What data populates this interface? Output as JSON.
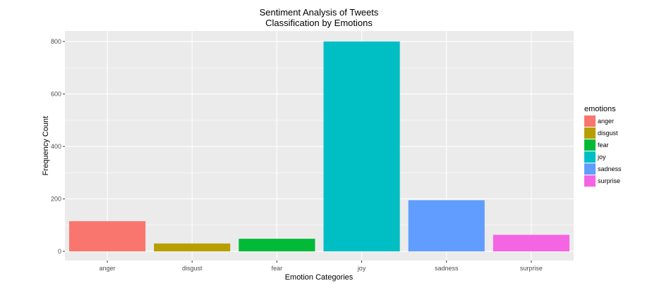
{
  "chart_data": {
    "type": "bar",
    "title": "Sentiment Analysis of Tweets",
    "subtitle": "Classification by Emotions",
    "xlabel": "Emotion Categories",
    "ylabel": "Frequency Count",
    "categories": [
      "anger",
      "disgust",
      "fear",
      "joy",
      "sadness",
      "surprise"
    ],
    "values": [
      115,
      30,
      48,
      800,
      195,
      63
    ],
    "colors": [
      "#F8766D",
      "#B79F00",
      "#00BA38",
      "#00BFC4",
      "#619CFF",
      "#F564E3"
    ],
    "ylim": [
      -35,
      840
    ],
    "yticks": [
      0,
      200,
      400,
      600,
      800
    ],
    "grid": true,
    "background": "#EBEBEB",
    "gridColor": "#FFFFFF",
    "legend": {
      "title": "emotions",
      "placement": "right",
      "items": [
        "anger",
        "disgust",
        "fear",
        "joy",
        "sadness",
        "surprise"
      ]
    }
  }
}
